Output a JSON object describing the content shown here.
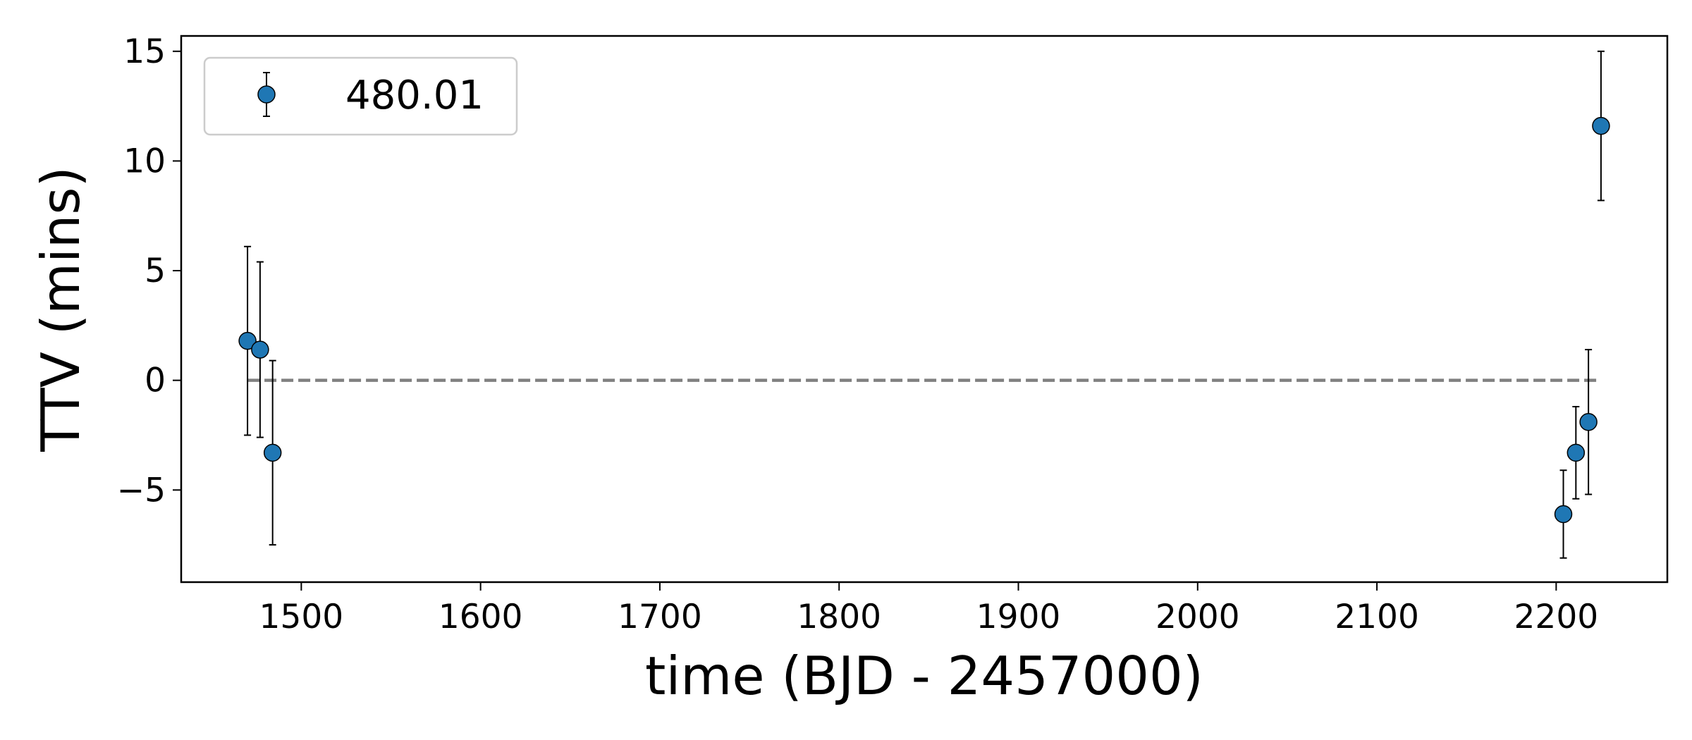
{
  "chart_data": {
    "type": "scatter",
    "title": "",
    "xlabel": "time (BJD - 2457000)",
    "ylabel": "TTV (mins)",
    "xlim": [
      1433,
      2262
    ],
    "ylim": [
      -9.2,
      15.7
    ],
    "xticks": [
      1500,
      1600,
      1700,
      1800,
      1900,
      2000,
      2100,
      2200
    ],
    "xtick_labels": [
      "1500",
      "1600",
      "1700",
      "1800",
      "1900",
      "2000",
      "2100",
      "2200"
    ],
    "yticks": [
      -5,
      0,
      5,
      10,
      15
    ],
    "ytick_labels": [
      "−5",
      "0",
      "5",
      "10",
      "15"
    ],
    "grid": false,
    "legend_position": "top-left",
    "reference_line": {
      "y": 0,
      "x_range": [
        1470,
        2225
      ],
      "style": "dashed",
      "color": "#808080"
    },
    "series": [
      {
        "name": "480.01",
        "color": "#1f77b4",
        "marker": "circle-errorbar",
        "points": [
          {
            "x": 1470,
            "y": 1.8,
            "err": 4.3
          },
          {
            "x": 1477,
            "y": 1.4,
            "err": 4.0
          },
          {
            "x": 1484,
            "y": -3.3,
            "err": 4.2
          },
          {
            "x": 2204,
            "y": -6.1,
            "err": 2.0
          },
          {
            "x": 2211,
            "y": -3.3,
            "err": 2.1
          },
          {
            "x": 2218,
            "y": -1.9,
            "err": 3.3
          },
          {
            "x": 2225,
            "y": 11.6,
            "err": 3.4
          }
        ]
      }
    ]
  }
}
